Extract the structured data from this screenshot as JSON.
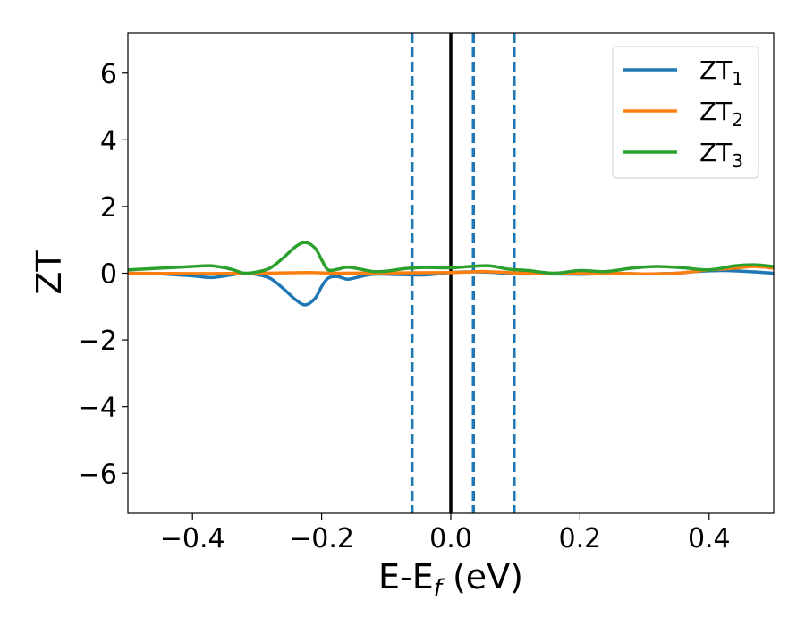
{
  "chart_data": {
    "type": "line",
    "xlabel": "E-E",
    "xlabel_sub": "f",
    "xlabel_unit": " (eV)",
    "ylabel": "ZT",
    "xlim": [
      -0.5,
      0.5
    ],
    "ylim": [
      -7.2,
      7.2
    ],
    "xticks": [
      -0.4,
      -0.2,
      0.0,
      0.2,
      0.4
    ],
    "xtick_labels": [
      "−0.4",
      "−0.2",
      "0.0",
      "0.2",
      "0.4"
    ],
    "yticks": [
      -6,
      -4,
      -2,
      0,
      2,
      4,
      6
    ],
    "ytick_labels": [
      "−6",
      "−4",
      "−2",
      "0",
      "2",
      "4",
      "6"
    ],
    "grid": false,
    "legend_position": "top-right",
    "vertical_lines": [
      {
        "x": -0.06,
        "style": "dashed",
        "color": "#1f77b4"
      },
      {
        "x": 0.0,
        "style": "solid",
        "color": "#000000"
      },
      {
        "x": 0.035,
        "style": "dashed",
        "color": "#1f77b4"
      },
      {
        "x": 0.098,
        "style": "dashed",
        "color": "#1f77b4"
      }
    ],
    "series": [
      {
        "name": "ZT",
        "name_sub": "1",
        "color": "#1f77b4",
        "points": [
          [
            -0.5,
            0.0
          ],
          [
            -0.45,
            -0.02
          ],
          [
            -0.4,
            -0.08
          ],
          [
            -0.37,
            -0.13
          ],
          [
            -0.34,
            -0.05
          ],
          [
            -0.32,
            0.0
          ],
          [
            -0.3,
            -0.04
          ],
          [
            -0.28,
            -0.15
          ],
          [
            -0.26,
            -0.45
          ],
          [
            -0.24,
            -0.8
          ],
          [
            -0.225,
            -0.95
          ],
          [
            -0.21,
            -0.75
          ],
          [
            -0.2,
            -0.4
          ],
          [
            -0.19,
            -0.15
          ],
          [
            -0.175,
            -0.1
          ],
          [
            -0.16,
            -0.18
          ],
          [
            -0.14,
            -0.1
          ],
          [
            -0.12,
            -0.03
          ],
          [
            -0.08,
            -0.04
          ],
          [
            -0.04,
            -0.05
          ],
          [
            0.0,
            0.02
          ],
          [
            0.03,
            0.04
          ],
          [
            0.06,
            0.03
          ],
          [
            0.1,
            -0.02
          ],
          [
            0.15,
            -0.02
          ],
          [
            0.2,
            -0.03
          ],
          [
            0.25,
            -0.01
          ],
          [
            0.3,
            -0.02
          ],
          [
            0.35,
            0.0
          ],
          [
            0.38,
            0.05
          ],
          [
            0.42,
            0.08
          ],
          [
            0.46,
            0.05
          ],
          [
            0.5,
            0.0
          ]
        ]
      },
      {
        "name": "ZT",
        "name_sub": "2",
        "color": "#ff7f0e",
        "points": [
          [
            -0.5,
            0.0
          ],
          [
            -0.4,
            -0.01
          ],
          [
            -0.3,
            0.0
          ],
          [
            -0.22,
            0.02
          ],
          [
            -0.18,
            0.0
          ],
          [
            -0.1,
            0.01
          ],
          [
            0.0,
            0.02
          ],
          [
            0.05,
            0.05
          ],
          [
            0.1,
            0.01
          ],
          [
            0.15,
            0.0
          ],
          [
            0.2,
            -0.01
          ],
          [
            0.25,
            0.0
          ],
          [
            0.3,
            -0.02
          ],
          [
            0.35,
            0.0
          ],
          [
            0.4,
            0.1
          ],
          [
            0.44,
            0.15
          ],
          [
            0.47,
            0.2
          ],
          [
            0.5,
            0.15
          ]
        ]
      },
      {
        "name": "ZT",
        "name_sub": "3",
        "color": "#2ca02c",
        "points": [
          [
            -0.5,
            0.1
          ],
          [
            -0.45,
            0.15
          ],
          [
            -0.4,
            0.2
          ],
          [
            -0.37,
            0.22
          ],
          [
            -0.34,
            0.12
          ],
          [
            -0.32,
            0.0
          ],
          [
            -0.3,
            0.04
          ],
          [
            -0.28,
            0.15
          ],
          [
            -0.26,
            0.45
          ],
          [
            -0.24,
            0.8
          ],
          [
            -0.225,
            0.92
          ],
          [
            -0.21,
            0.75
          ],
          [
            -0.2,
            0.4
          ],
          [
            -0.19,
            0.1
          ],
          [
            -0.175,
            0.12
          ],
          [
            -0.16,
            0.18
          ],
          [
            -0.14,
            0.12
          ],
          [
            -0.12,
            0.05
          ],
          [
            -0.1,
            0.06
          ],
          [
            -0.07,
            0.14
          ],
          [
            -0.04,
            0.17
          ],
          [
            0.0,
            0.16
          ],
          [
            0.03,
            0.2
          ],
          [
            0.06,
            0.22
          ],
          [
            0.09,
            0.12
          ],
          [
            0.12,
            0.08
          ],
          [
            0.16,
            0.0
          ],
          [
            0.2,
            0.08
          ],
          [
            0.24,
            0.05
          ],
          [
            0.28,
            0.15
          ],
          [
            0.32,
            0.2
          ],
          [
            0.36,
            0.16
          ],
          [
            0.4,
            0.1
          ],
          [
            0.44,
            0.22
          ],
          [
            0.47,
            0.25
          ],
          [
            0.5,
            0.2
          ]
        ]
      }
    ]
  }
}
